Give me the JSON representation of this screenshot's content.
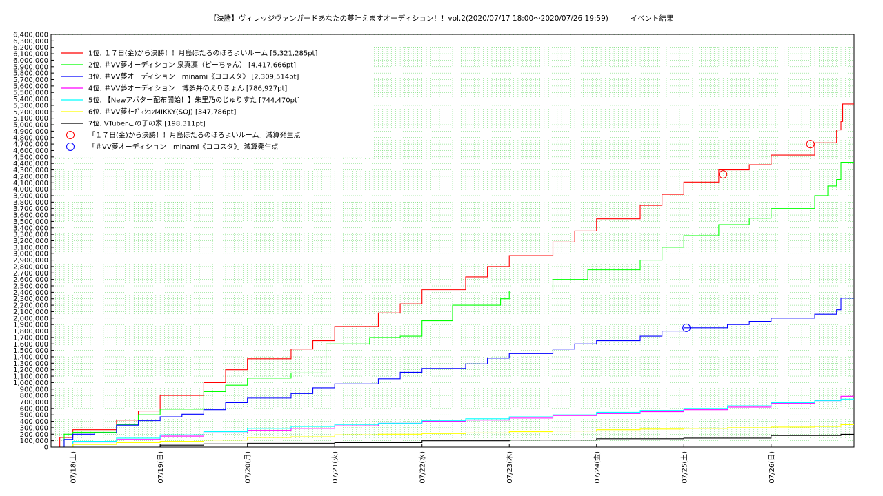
{
  "title": "【決勝】ヴィレッジヴァンガードあなたの夢叶えますオーディション！！vol.2(2020/07/17 18:00〜2020/07/26 19:59)　　　イベント結果",
  "chart_data": {
    "type": "line",
    "title": "【決勝】ヴィレッジヴァンガードあなたの夢叶えますオーディション！！vol.2(2020/07/17 18:00〜2020/07/26 19:59)　　　イベント結果",
    "xlabel": "",
    "ylabel": "",
    "x_tick_labels": [
      "07/18(土)",
      "07/19(日)",
      "07/20(月)",
      "07/21(火)",
      "07/22(水)",
      "07/23(木)",
      "07/24(金)",
      "07/25(土)",
      "07/26(日)"
    ],
    "x_tick_days": [
      1,
      2,
      3,
      4,
      5,
      6,
      7,
      8,
      9
    ],
    "xlim_days": [
      0.75,
      9.95
    ],
    "ylim": [
      0,
      6400000
    ],
    "ytick_step": 100000,
    "grid": true,
    "legend_position": "top-left",
    "series": [
      {
        "name": "1位. １７日(金)から決勝！！月島ほたるのほろよいルーム [5,321,285pt]",
        "color": "#ff0000",
        "points": [
          [
            0.75,
            0
          ],
          [
            0.85,
            150000
          ],
          [
            1.0,
            270000
          ],
          [
            1.25,
            270000
          ],
          [
            1.5,
            420000
          ],
          [
            1.75,
            560000
          ],
          [
            2.0,
            800000
          ],
          [
            2.25,
            800000
          ],
          [
            2.5,
            1000000
          ],
          [
            2.75,
            1200000
          ],
          [
            3.0,
            1370000
          ],
          [
            3.25,
            1370000
          ],
          [
            3.5,
            1520000
          ],
          [
            3.75,
            1650000
          ],
          [
            4.0,
            1870000
          ],
          [
            4.25,
            1870000
          ],
          [
            4.5,
            2080000
          ],
          [
            4.75,
            2220000
          ],
          [
            5.0,
            2440000
          ],
          [
            5.25,
            2440000
          ],
          [
            5.5,
            2640000
          ],
          [
            5.75,
            2800000
          ],
          [
            6.0,
            2970000
          ],
          [
            6.25,
            2970000
          ],
          [
            6.5,
            3180000
          ],
          [
            6.75,
            3350000
          ],
          [
            7.0,
            3540000
          ],
          [
            7.25,
            3540000
          ],
          [
            7.5,
            3750000
          ],
          [
            7.75,
            3920000
          ],
          [
            8.0,
            4110000
          ],
          [
            8.25,
            4110000
          ],
          [
            8.4,
            4300000
          ],
          [
            8.75,
            4380000
          ],
          [
            9.0,
            4530000
          ],
          [
            9.25,
            4530000
          ],
          [
            9.5,
            4720000
          ],
          [
            9.75,
            4920000
          ],
          [
            9.8,
            5050000
          ],
          [
            9.82,
            5321285
          ],
          [
            9.95,
            5321285
          ]
        ]
      },
      {
        "name": "2位. ＃VV夢オーディション 泉真凜（ピーちゃん） [4,417,666pt]",
        "color": "#00ff00",
        "points": [
          [
            0.75,
            0
          ],
          [
            0.9,
            200000
          ],
          [
            1.0,
            230000
          ],
          [
            1.25,
            230000
          ],
          [
            1.5,
            350000
          ],
          [
            1.75,
            500000
          ],
          [
            2.0,
            590000
          ],
          [
            2.25,
            590000
          ],
          [
            2.5,
            860000
          ],
          [
            2.75,
            960000
          ],
          [
            3.0,
            1070000
          ],
          [
            3.25,
            1070000
          ],
          [
            3.5,
            1150000
          ],
          [
            3.75,
            1150000
          ],
          [
            3.9,
            1600000
          ],
          [
            4.25,
            1600000
          ],
          [
            4.4,
            1700000
          ],
          [
            4.75,
            1720000
          ],
          [
            5.0,
            1960000
          ],
          [
            5.25,
            1960000
          ],
          [
            5.35,
            2200000
          ],
          [
            5.75,
            2200000
          ],
          [
            5.9,
            2300000
          ],
          [
            6.0,
            2420000
          ],
          [
            6.25,
            2420000
          ],
          [
            6.5,
            2600000
          ],
          [
            6.75,
            2600000
          ],
          [
            6.9,
            2750000
          ],
          [
            7.25,
            2750000
          ],
          [
            7.5,
            2900000
          ],
          [
            7.75,
            3100000
          ],
          [
            8.0,
            3280000
          ],
          [
            8.25,
            3280000
          ],
          [
            8.4,
            3450000
          ],
          [
            8.75,
            3550000
          ],
          [
            9.0,
            3700000
          ],
          [
            9.25,
            3700000
          ],
          [
            9.5,
            3900000
          ],
          [
            9.65,
            4050000
          ],
          [
            9.75,
            4150000
          ],
          [
            9.8,
            4417666
          ],
          [
            9.95,
            4417666
          ]
        ]
      },
      {
        "name": "3位. ＃VV夢オーディション　minami《ココスタ》 [2,309,514pt]",
        "color": "#0000ff",
        "points": [
          [
            0.75,
            0
          ],
          [
            0.9,
            120000
          ],
          [
            1.0,
            200000
          ],
          [
            1.25,
            220000
          ],
          [
            1.5,
            340000
          ],
          [
            1.75,
            410000
          ],
          [
            2.0,
            470000
          ],
          [
            2.25,
            510000
          ],
          [
            2.5,
            580000
          ],
          [
            2.75,
            690000
          ],
          [
            3.0,
            760000
          ],
          [
            3.25,
            760000
          ],
          [
            3.5,
            830000
          ],
          [
            3.75,
            920000
          ],
          [
            4.0,
            980000
          ],
          [
            4.25,
            980000
          ],
          [
            4.5,
            1060000
          ],
          [
            4.75,
            1160000
          ],
          [
            5.0,
            1220000
          ],
          [
            5.25,
            1220000
          ],
          [
            5.5,
            1290000
          ],
          [
            5.75,
            1380000
          ],
          [
            6.0,
            1450000
          ],
          [
            6.25,
            1450000
          ],
          [
            6.5,
            1520000
          ],
          [
            6.75,
            1600000
          ],
          [
            7.0,
            1650000
          ],
          [
            7.25,
            1650000
          ],
          [
            7.5,
            1720000
          ],
          [
            7.75,
            1800000
          ],
          [
            8.0,
            1850000
          ],
          [
            8.25,
            1850000
          ],
          [
            8.5,
            1900000
          ],
          [
            8.75,
            1950000
          ],
          [
            9.0,
            2000000
          ],
          [
            9.25,
            2000000
          ],
          [
            9.5,
            2060000
          ],
          [
            9.75,
            2130000
          ],
          [
            9.8,
            2309514
          ],
          [
            9.95,
            2309514
          ]
        ]
      },
      {
        "name": "4位. ＃VV夢オーディション　博多弁のえりきょん [786,927pt]",
        "color": "#ff00ff",
        "points": [
          [
            0.75,
            0
          ],
          [
            1.0,
            80000
          ],
          [
            1.5,
            120000
          ],
          [
            2.0,
            170000
          ],
          [
            2.5,
            220000
          ],
          [
            3.0,
            260000
          ],
          [
            3.5,
            290000
          ],
          [
            4.0,
            330000
          ],
          [
            4.5,
            370000
          ],
          [
            5.0,
            400000
          ],
          [
            5.5,
            420000
          ],
          [
            6.0,
            450000
          ],
          [
            6.5,
            490000
          ],
          [
            7.0,
            520000
          ],
          [
            7.5,
            550000
          ],
          [
            8.0,
            580000
          ],
          [
            8.5,
            620000
          ],
          [
            9.0,
            680000
          ],
          [
            9.5,
            720000
          ],
          [
            9.8,
            786927
          ],
          [
            9.95,
            786927
          ]
        ]
      },
      {
        "name": "5位. 【Newアバター配布開始！】朱里乃のじゅりすた [744,470pt]",
        "color": "#00ffff",
        "points": [
          [
            0.75,
            0
          ],
          [
            1.0,
            90000
          ],
          [
            1.5,
            140000
          ],
          [
            2.0,
            190000
          ],
          [
            2.5,
            240000
          ],
          [
            3.0,
            290000
          ],
          [
            3.5,
            320000
          ],
          [
            4.0,
            350000
          ],
          [
            4.5,
            370000
          ],
          [
            5.0,
            410000
          ],
          [
            5.5,
            440000
          ],
          [
            6.0,
            470000
          ],
          [
            6.5,
            500000
          ],
          [
            7.0,
            540000
          ],
          [
            7.5,
            570000
          ],
          [
            8.0,
            600000
          ],
          [
            8.5,
            640000
          ],
          [
            9.0,
            690000
          ],
          [
            9.5,
            720000
          ],
          [
            9.8,
            744470
          ],
          [
            9.95,
            744470
          ]
        ]
      },
      {
        "name": "6位. ＃VV夢ｵｰﾃﾞｨｼｮﾝMIKKY(SOJ) [347,786pt]",
        "color": "#ffff00",
        "points": [
          [
            0.75,
            0
          ],
          [
            1.0,
            40000
          ],
          [
            1.5,
            70000
          ],
          [
            2.0,
            90000
          ],
          [
            2.5,
            110000
          ],
          [
            3.0,
            150000
          ],
          [
            3.5,
            160000
          ],
          [
            4.0,
            190000
          ],
          [
            4.5,
            200000
          ],
          [
            5.0,
            210000
          ],
          [
            5.5,
            220000
          ],
          [
            6.0,
            240000
          ],
          [
            6.5,
            250000
          ],
          [
            7.0,
            270000
          ],
          [
            7.5,
            280000
          ],
          [
            8.0,
            290000
          ],
          [
            8.5,
            300000
          ],
          [
            9.0,
            310000
          ],
          [
            9.5,
            320000
          ],
          [
            9.8,
            347786
          ],
          [
            9.95,
            347786
          ]
        ]
      },
      {
        "name": "7位. VTuberこの子の家 [198,311pt]",
        "color": "#000000",
        "points": [
          [
            0.75,
            0
          ],
          [
            1.5,
            0
          ],
          [
            2.0,
            30000
          ],
          [
            2.5,
            50000
          ],
          [
            3.0,
            60000
          ],
          [
            3.5,
            60000
          ],
          [
            4.0,
            70000
          ],
          [
            4.5,
            70000
          ],
          [
            5.0,
            100000
          ],
          [
            5.5,
            100000
          ],
          [
            6.0,
            110000
          ],
          [
            6.5,
            110000
          ],
          [
            7.0,
            130000
          ],
          [
            7.5,
            130000
          ],
          [
            8.0,
            140000
          ],
          [
            8.5,
            140000
          ],
          [
            9.0,
            180000
          ],
          [
            9.5,
            180000
          ],
          [
            9.8,
            198311
          ],
          [
            9.95,
            198311
          ]
        ]
      }
    ],
    "markers": [
      {
        "name": "「１７日(金)から決勝！！月島ほたるのほろよいルーム」減算発生点",
        "color": "#ff0000",
        "points": [
          [
            8.45,
            4230000
          ],
          [
            9.45,
            4700000
          ]
        ]
      },
      {
        "name": "「＃VV夢オーディション　minami《ココスタ》」減算発生点",
        "color": "#0000ff",
        "points": [
          [
            8.03,
            1850000
          ]
        ]
      }
    ]
  }
}
